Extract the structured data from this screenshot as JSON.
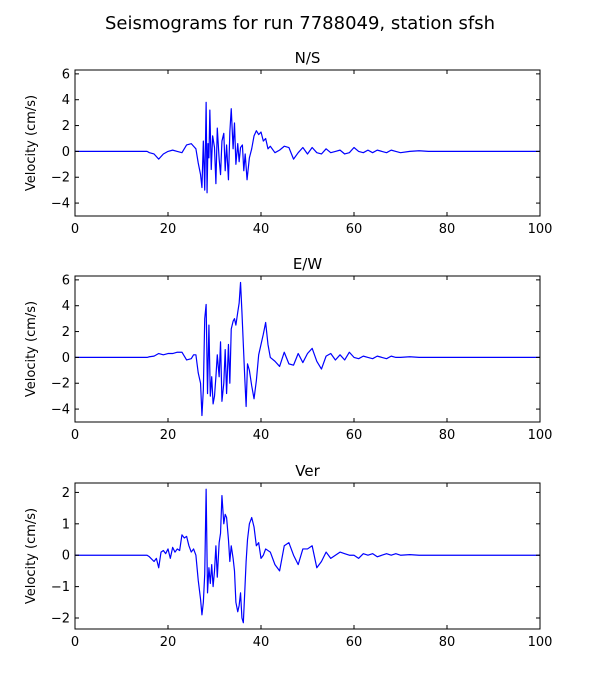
{
  "figure": {
    "title": "Seismograms for run 7788049, station sfsh"
  },
  "chart_data": [
    {
      "type": "line",
      "title": "N/S",
      "xlabel": "",
      "ylabel": "Velocity (cm/s)",
      "xlim": [
        0,
        100
      ],
      "ylim": [
        -5,
        6.3
      ],
      "xticks": [
        0,
        20,
        40,
        60,
        80,
        100
      ],
      "yticks": [
        -4,
        -2,
        0,
        2,
        4,
        6
      ],
      "color": "#0000ff",
      "x": [
        0,
        15.5,
        16,
        17,
        18,
        19,
        20,
        21,
        22,
        23,
        24,
        25,
        25.5,
        26,
        26.5,
        27,
        27.3,
        27.6,
        27.9,
        28.2,
        28.4,
        28.6,
        28.8,
        29,
        29.3,
        29.6,
        30,
        30.3,
        30.6,
        31,
        31.3,
        31.6,
        32,
        32.3,
        32.6,
        33,
        33.3,
        33.6,
        34,
        34.3,
        34.6,
        35,
        35.3,
        35.6,
        36,
        36.3,
        36.6,
        37,
        37.5,
        38,
        38.5,
        39,
        39.5,
        40,
        40.5,
        41,
        41.5,
        42,
        43,
        44,
        45,
        46,
        47,
        48,
        49,
        50,
        51,
        52,
        53,
        54,
        55,
        56,
        57,
        58,
        59,
        60,
        61,
        62,
        63,
        64,
        65,
        66,
        67,
        68,
        69,
        70,
        72,
        74,
        76,
        100
      ],
      "y": [
        0,
        0,
        -0.1,
        -0.2,
        -0.6,
        -0.2,
        0,
        0.1,
        0,
        -0.1,
        0.5,
        0.6,
        0.4,
        0.2,
        -0.9,
        -1.8,
        -2.8,
        0.8,
        -3.0,
        3.8,
        -3.2,
        0.6,
        -0.5,
        3.2,
        -1.4,
        1.2,
        0.3,
        -2.5,
        1.8,
        -0.6,
        -1.8,
        0.8,
        1.4,
        -1.5,
        0.5,
        -2.2,
        1.5,
        3.3,
        0.2,
        2.2,
        -1.0,
        0.6,
        -0.8,
        0.3,
        0.5,
        -1.5,
        -0.2,
        -2.2,
        -0.5,
        0.2,
        1.2,
        1.6,
        1.3,
        1.5,
        0.8,
        1.0,
        0.2,
        0.4,
        -0.1,
        0.1,
        0.4,
        0.3,
        -0.6,
        -0.1,
        0.3,
        -0.2,
        0.3,
        -0.1,
        -0.2,
        0.2,
        -0.1,
        0.0,
        0.1,
        -0.2,
        -0.1,
        0.3,
        0.0,
        -0.1,
        0.1,
        -0.1,
        0.1,
        0.0,
        -0.1,
        0.1,
        0.0,
        -0.1,
        0.0,
        0.05,
        0.0,
        0
      ]
    },
    {
      "type": "line",
      "title": "E/W",
      "xlabel": "",
      "ylabel": "Velocity (cm/s)",
      "xlim": [
        0,
        100
      ],
      "ylim": [
        -5,
        6.3
      ],
      "xticks": [
        0,
        20,
        40,
        60,
        80,
        100
      ],
      "yticks": [
        -4,
        -2,
        0,
        2,
        4,
        6
      ],
      "color": "#0000ff",
      "x": [
        0,
        15.5,
        16,
        17,
        18,
        19,
        20,
        21,
        22,
        23,
        24,
        25,
        25.5,
        26,
        26.5,
        27,
        27.3,
        27.6,
        27.9,
        28.2,
        28.5,
        28.8,
        29.1,
        29.4,
        29.7,
        30,
        30.3,
        30.6,
        31,
        31.3,
        31.6,
        32,
        32.3,
        32.6,
        33,
        33.3,
        33.6,
        34,
        34.3,
        34.6,
        35,
        35.3,
        35.6,
        35.9,
        36.2,
        36.5,
        36.8,
        37.1,
        37.5,
        38,
        38.5,
        39,
        39.5,
        40,
        40.5,
        41,
        41.5,
        42,
        43,
        44,
        45,
        46,
        47,
        48,
        49,
        50,
        51,
        52,
        53,
        54,
        55,
        56,
        57,
        58,
        59,
        60,
        61,
        62,
        63,
        64,
        65,
        66,
        67,
        68,
        69,
        70,
        72,
        74,
        76,
        100
      ],
      "y": [
        0,
        0,
        0.05,
        0.1,
        0.3,
        0.2,
        0.3,
        0.3,
        0.4,
        0.4,
        -0.2,
        -0.1,
        0.2,
        0.2,
        -1.2,
        -2.0,
        -4.5,
        -2.5,
        3.0,
        4.1,
        -2.8,
        2.5,
        -3.0,
        -1.5,
        -3.6,
        -3.0,
        -1.5,
        0.2,
        -1.5,
        1.2,
        -3.4,
        -2.0,
        0.6,
        -2.8,
        1.0,
        -2.0,
        2.2,
        2.8,
        3.0,
        2.5,
        3.5,
        4.2,
        5.8,
        3.5,
        1.0,
        -1.5,
        -3.8,
        -0.5,
        -1.0,
        -2.2,
        -3.2,
        -1.8,
        0.2,
        1.0,
        1.8,
        2.7,
        1.0,
        0.0,
        -0.3,
        -0.7,
        0.4,
        -0.5,
        -0.6,
        0.3,
        -0.4,
        0.3,
        0.7,
        -0.3,
        -0.9,
        0.1,
        0.3,
        -0.2,
        0.2,
        -0.2,
        0.4,
        0.0,
        -0.1,
        0.1,
        0.0,
        -0.1,
        0.1,
        0.0,
        -0.1,
        0.1,
        0.0,
        0.0,
        0.05,
        0.0,
        0.0,
        0
      ]
    },
    {
      "type": "line",
      "title": "Ver",
      "xlabel": "",
      "ylabel": "Velocity (cm/s)",
      "xlim": [
        0,
        100
      ],
      "ylim": [
        -2.35,
        2.3
      ],
      "xticks": [
        0,
        20,
        40,
        60,
        80,
        100
      ],
      "yticks": [
        -2,
        -1,
        0,
        1,
        2
      ],
      "color": "#0000ff",
      "x": [
        0,
        15.5,
        16,
        17,
        17.5,
        18,
        18.5,
        19,
        19.5,
        20,
        20.5,
        21,
        21.5,
        22,
        22.5,
        23,
        23.5,
        24,
        24.5,
        25,
        25.5,
        26,
        26.5,
        27,
        27.3,
        27.6,
        27.9,
        28.2,
        28.5,
        28.8,
        29.1,
        29.4,
        29.7,
        30,
        30.3,
        30.6,
        31,
        31.3,
        31.6,
        32,
        32.3,
        32.6,
        33,
        33.3,
        33.6,
        34,
        34.3,
        34.6,
        35,
        35.3,
        35.6,
        35.9,
        36.2,
        36.5,
        36.8,
        37.1,
        37.5,
        38,
        38.5,
        39,
        39.5,
        40,
        40.5,
        41,
        42,
        43,
        44,
        45,
        46,
        47,
        48,
        49,
        50,
        51,
        52,
        53,
        54,
        55,
        56,
        57,
        58,
        59,
        60,
        61,
        62,
        63,
        64,
        65,
        66,
        67,
        68,
        69,
        70,
        72,
        74,
        100
      ],
      "y": [
        0,
        0,
        -0.05,
        -0.2,
        -0.1,
        -0.4,
        0.1,
        0.15,
        0.05,
        0.2,
        -0.1,
        0.25,
        0.1,
        0.2,
        0.15,
        0.65,
        0.55,
        0.6,
        0.3,
        0.1,
        0.2,
        0.0,
        -0.8,
        -1.4,
        -1.9,
        -1.5,
        -0.6,
        2.1,
        -1.2,
        -0.4,
        -0.9,
        -0.3,
        -1.0,
        -0.5,
        0.3,
        -0.7,
        0.4,
        0.7,
        1.9,
        1.0,
        1.3,
        1.2,
        0.5,
        -0.2,
        0.3,
        -0.1,
        -0.5,
        -1.5,
        -1.8,
        -1.6,
        -1.2,
        -2.0,
        -2.15,
        -1.2,
        -0.2,
        0.5,
        1.0,
        1.2,
        0.9,
        0.3,
        0.4,
        -0.1,
        0.0,
        0.2,
        0.1,
        -0.3,
        -0.5,
        0.3,
        0.4,
        0.0,
        -0.3,
        0.2,
        0.2,
        0.3,
        -0.4,
        -0.2,
        0.1,
        -0.1,
        0.0,
        0.1,
        0.05,
        0.0,
        0.0,
        -0.1,
        0.05,
        0.0,
        0.05,
        -0.05,
        0.0,
        0.05,
        0.0,
        0.05,
        0.0,
        0.02,
        0.0,
        0
      ]
    }
  ]
}
